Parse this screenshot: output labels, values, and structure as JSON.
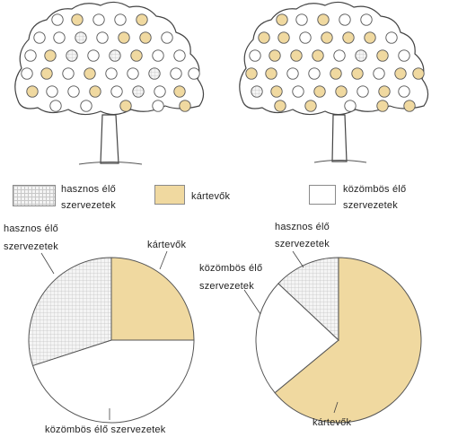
{
  "colors": {
    "harmful": "#f0d9a0",
    "neutral": "#ffffff",
    "beneficial_pattern": "#c8c8c8",
    "outline": "#555555"
  },
  "legend": {
    "beneficial": [
      "hasznos élő",
      "szervezetek"
    ],
    "harmful": "kártevők",
    "neutral": [
      "közömbös élő",
      "szervezetek"
    ]
  },
  "chart_data": [
    {
      "type": "pie",
      "slices": [
        {
          "label": "kártevők",
          "value": 25,
          "fill": "harmful"
        },
        {
          "label": "közömbös élő szervezetek",
          "value": 45,
          "fill": "neutral"
        },
        {
          "label": "hasznos élő szervezetek",
          "value": 30,
          "fill": "beneficial"
        }
      ],
      "labels": {
        "harmful": "kártevők",
        "neutral": "közömbös élő szervezetek",
        "beneficial": [
          "hasznos élő",
          "szervezetek"
        ]
      }
    },
    {
      "type": "pie",
      "slices": [
        {
          "label": "kártevők",
          "value": 64,
          "fill": "harmful"
        },
        {
          "label": "közömbös élő szervezetek",
          "value": 23,
          "fill": "neutral"
        },
        {
          "label": "hasznos élő szervezetek",
          "value": 13,
          "fill": "beneficial"
        }
      ],
      "labels": {
        "harmful": "kártevők",
        "neutral": [
          "közömbös élő",
          "szervezetek"
        ],
        "beneficial": [
          "hasznos élő",
          "szervezetek"
        ]
      }
    }
  ],
  "trees": [
    {
      "fruits": [
        "n",
        "h",
        "n",
        "n",
        "h",
        "n",
        "n",
        "b",
        "n",
        "h",
        "h",
        "n",
        "n",
        "h",
        "b",
        "n",
        "b",
        "h",
        "n",
        "n",
        "n",
        "h",
        "n",
        "h",
        "n",
        "n",
        "b",
        "n",
        "n",
        "h",
        "n",
        "n",
        "h",
        "n",
        "b",
        "n",
        "h",
        "n",
        "n",
        "h",
        "n",
        "h",
        "n",
        "n"
      ]
    },
    {
      "fruits": [
        "h",
        "n",
        "h",
        "n",
        "n",
        "h",
        "h",
        "n",
        "h",
        "h",
        "h",
        "n",
        "n",
        "h",
        "h",
        "h",
        "n",
        "b",
        "h",
        "n",
        "h",
        "h",
        "n",
        "n",
        "h",
        "h",
        "n",
        "h",
        "h",
        "b",
        "h",
        "n",
        "h",
        "h",
        "n",
        "h",
        "n",
        "h",
        "h",
        "n",
        "h",
        "h",
        "n",
        "h"
      ]
    }
  ]
}
